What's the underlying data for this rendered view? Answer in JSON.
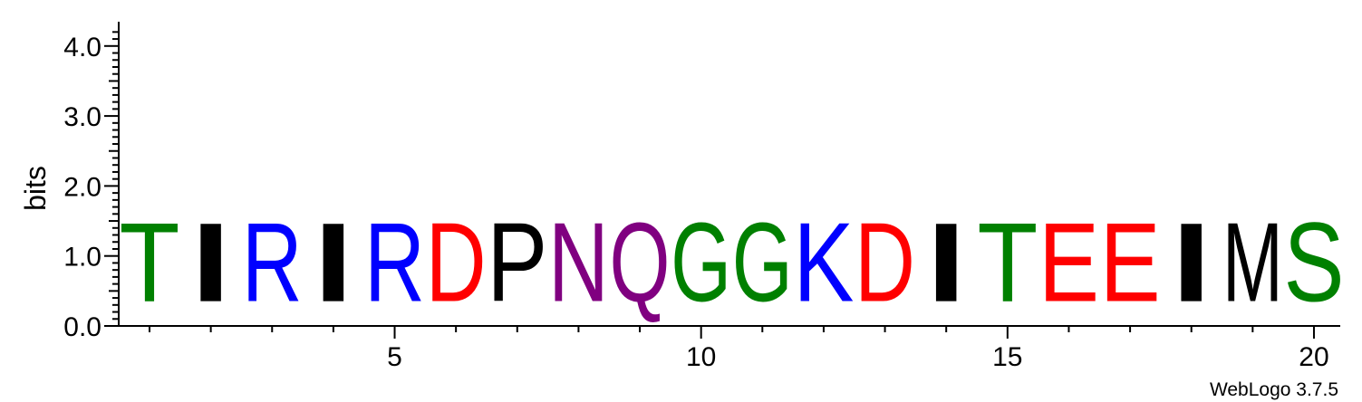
{
  "chart_data": {
    "type": "sequence-logo",
    "ylabel": "bits",
    "ylim": [
      0,
      4.3
    ],
    "y_ticks": [
      "0.0",
      "1.0",
      "2.0",
      "3.0",
      "4.0"
    ],
    "y_tick_values": [
      0,
      1,
      2,
      3,
      4
    ],
    "x_ticks": [
      "5",
      "10",
      "15",
      "20"
    ],
    "x_tick_values": [
      5,
      10,
      15,
      20
    ],
    "grid": false,
    "positions": [
      1,
      2,
      3,
      4,
      5,
      6,
      7,
      8,
      9,
      10,
      11,
      12,
      13,
      14,
      15,
      16,
      17,
      18,
      19,
      20
    ],
    "letters": [
      "T",
      "I",
      "R",
      "I",
      "R",
      "D",
      "P",
      "N",
      "Q",
      "G",
      "G",
      "K",
      "D",
      "I",
      "T",
      "E",
      "E",
      "I",
      "M",
      "S"
    ],
    "heights": [
      1.8,
      1.8,
      1.8,
      1.8,
      1.8,
      1.8,
      1.8,
      1.8,
      1.8,
      1.8,
      1.8,
      1.8,
      1.8,
      1.8,
      1.8,
      1.8,
      1.8,
      1.8,
      1.8,
      1.8
    ],
    "color_scheme": {
      "T": "#008000",
      "S": "#008000",
      "G": "#008000",
      "I": "#000000",
      "P": "#000000",
      "M": "#000000",
      "R": "#0000ff",
      "K": "#0000ff",
      "D": "#ff0000",
      "E": "#ff0000",
      "N": "#800080",
      "Q": "#800080"
    }
  },
  "footer": "WebLogo 3.7.5"
}
